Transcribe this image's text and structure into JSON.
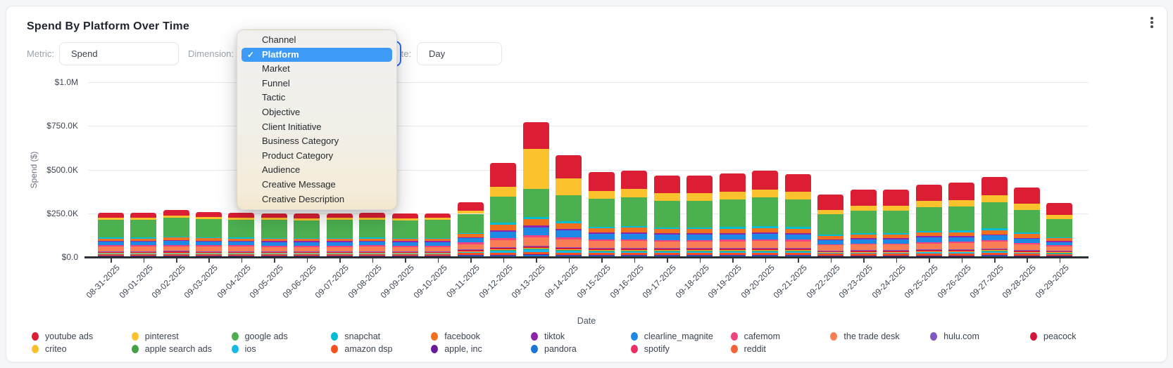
{
  "header": {
    "title": "Spend By Platform Over Time",
    "menu_icon": "kebab-menu-icon"
  },
  "filters": {
    "metric": {
      "label": "Metric:",
      "value": "Spend"
    },
    "dimension": {
      "label": "Dimension:",
      "value": "Platform"
    },
    "date": {
      "label": "Date:",
      "value": "Day"
    }
  },
  "dropdown": {
    "selected": "Platform",
    "check_icon": "checkmark-icon",
    "options": [
      "Channel",
      "Platform",
      "Market",
      "Funnel",
      "Tactic",
      "Objective",
      "Client Initiative",
      "Business Category",
      "Product Category",
      "Audience",
      "Creative Message",
      "Creative Description"
    ]
  },
  "legend": {
    "columns": [
      [
        "youtube ads",
        "criteo"
      ],
      [
        "pinterest",
        "apple search ads"
      ],
      [
        "google ads",
        "ios"
      ],
      [
        "snapchat",
        "amazon dsp"
      ],
      [
        "facebook",
        "apple, inc"
      ],
      [
        "tiktok",
        "pandora"
      ],
      [
        "clearline_magnite",
        "spotify"
      ],
      [
        "cafemom",
        "reddit"
      ],
      [
        "the trade desk"
      ],
      [
        "hulu.com"
      ],
      [
        "peacock"
      ]
    ]
  },
  "chart_data": {
    "type": "bar",
    "stacked": true,
    "title": "Spend By Platform Over Time",
    "xlabel": "Date",
    "ylabel": "Spend ($)",
    "unit": "thousand USD",
    "ylim": [
      0,
      1000
    ],
    "grid": true,
    "legend_position": "bottom",
    "y_ticks": [
      {
        "label": "$0.0",
        "value": 0
      },
      {
        "label": "$250.0K",
        "value": 250
      },
      {
        "label": "$500.0K",
        "value": 500
      },
      {
        "label": "$750.0K",
        "value": 750
      },
      {
        "label": "$1.0M",
        "value": 1000
      }
    ],
    "x": [
      "08-31-2025",
      "09-01-2025",
      "09-02-2025",
      "09-03-2025",
      "09-04-2025",
      "09-05-2025",
      "09-06-2025",
      "09-07-2025",
      "09-08-2025",
      "09-09-2025",
      "09-10-2025",
      "09-11-2025",
      "09-12-2025",
      "09-13-2025",
      "09-14-2025",
      "09-15-2025",
      "09-16-2025",
      "09-17-2025",
      "09-18-2025",
      "09-19-2025",
      "09-20-2025",
      "09-21-2025",
      "09-22-2025",
      "09-23-2025",
      "09-24-2025",
      "09-25-2025",
      "09-26-2025",
      "09-27-2025",
      "09-28-2025",
      "09-29-2025"
    ],
    "stack_order": "bottom-to-top",
    "series": [
      {
        "name": "reddit",
        "color": "#f4623a",
        "values": [
          2,
          2,
          2,
          2,
          2,
          2,
          2,
          2,
          2,
          2,
          2,
          3,
          3,
          3,
          3,
          3,
          3,
          3,
          3,
          3,
          3,
          3,
          2,
          2,
          2,
          2,
          2,
          3,
          2,
          2
        ]
      },
      {
        "name": "spotify",
        "color": "#ec2d63",
        "values": [
          2,
          2,
          2,
          2,
          2,
          2,
          2,
          2,
          2,
          2,
          2,
          3,
          3,
          3,
          3,
          3,
          3,
          3,
          3,
          3,
          3,
          3,
          2,
          2,
          2,
          2,
          2,
          3,
          2,
          2
        ]
      },
      {
        "name": "pandora",
        "color": "#1976d2",
        "values": [
          3,
          3,
          3,
          3,
          3,
          3,
          3,
          3,
          3,
          3,
          3,
          4,
          4,
          5,
          4,
          4,
          4,
          4,
          4,
          4,
          4,
          4,
          3,
          3,
          3,
          3,
          3,
          4,
          3,
          3
        ]
      },
      {
        "name": "apple, inc",
        "color": "#6a1b9a",
        "values": [
          3,
          3,
          3,
          3,
          3,
          3,
          3,
          3,
          3,
          3,
          3,
          4,
          4,
          4,
          4,
          4,
          4,
          4,
          4,
          4,
          4,
          4,
          3,
          3,
          3,
          3,
          3,
          4,
          3,
          3
        ]
      },
      {
        "name": "amazon dsp",
        "color": "#f4511e",
        "values": [
          8,
          8,
          9,
          8,
          8,
          8,
          8,
          8,
          8,
          8,
          8,
          10,
          12,
          15,
          12,
          12,
          12,
          11,
          11,
          11,
          12,
          11,
          9,
          9,
          9,
          10,
          10,
          11,
          9,
          8
        ]
      },
      {
        "name": "ios",
        "color": "#18b9e6",
        "values": [
          2,
          2,
          2,
          2,
          2,
          2,
          2,
          2,
          2,
          2,
          2,
          3,
          12,
          14,
          10,
          8,
          8,
          8,
          8,
          8,
          8,
          8,
          6,
          6,
          6,
          7,
          7,
          7,
          6,
          4
        ]
      },
      {
        "name": "apple search ads",
        "color": "#43a047",
        "values": [
          3,
          3,
          3,
          3,
          3,
          3,
          3,
          3,
          3,
          3,
          3,
          4,
          4,
          4,
          4,
          4,
          4,
          4,
          4,
          4,
          4,
          4,
          3,
          3,
          3,
          4,
          4,
          4,
          3,
          3
        ]
      },
      {
        "name": "criteo",
        "color": "#fcbe2d",
        "values": [
          2,
          2,
          2,
          2,
          2,
          2,
          2,
          2,
          2,
          2,
          2,
          3,
          3,
          3,
          3,
          3,
          3,
          3,
          3,
          3,
          3,
          3,
          2,
          2,
          2,
          3,
          3,
          3,
          2,
          2
        ]
      },
      {
        "name": "peacock",
        "color": "#d4163c",
        "values": [
          6,
          6,
          6,
          6,
          6,
          6,
          6,
          6,
          6,
          6,
          6,
          7,
          8,
          8,
          8,
          7,
          7,
          7,
          7,
          7,
          7,
          7,
          5,
          6,
          6,
          6,
          6,
          7,
          6,
          5
        ]
      },
      {
        "name": "hulu.com",
        "color": "#7e57c2",
        "values": [
          3,
          3,
          3,
          3,
          3,
          3,
          3,
          3,
          3,
          3,
          3,
          4,
          5,
          5,
          5,
          4,
          4,
          4,
          4,
          4,
          4,
          4,
          3,
          3,
          3,
          4,
          4,
          4,
          3,
          3
        ]
      },
      {
        "name": "the trade desk",
        "color": "#fa7e55",
        "values": [
          25,
          25,
          26,
          25,
          25,
          24,
          24,
          24,
          25,
          24,
          24,
          29,
          40,
          50,
          45,
          40,
          41,
          38,
          38,
          39,
          40,
          39,
          29,
          32,
          32,
          34,
          35,
          37,
          33,
          26
        ]
      },
      {
        "name": "cafemom",
        "color": "#f0437f",
        "values": [
          8,
          8,
          9,
          8,
          8,
          8,
          8,
          8,
          8,
          8,
          8,
          10,
          10,
          10,
          10,
          9,
          9,
          9,
          9,
          9,
          9,
          9,
          7,
          7,
          7,
          8,
          8,
          8,
          7,
          6
        ]
      },
      {
        "name": "clearline_magnite",
        "color": "#1e88e5",
        "values": [
          20,
          20,
          22,
          21,
          20,
          20,
          20,
          20,
          20,
          20,
          20,
          24,
          35,
          45,
          40,
          30,
          31,
          29,
          29,
          30,
          31,
          30,
          22,
          24,
          24,
          26,
          26,
          28,
          25,
          19
        ]
      },
      {
        "name": "tiktok",
        "color": "#8e24aa",
        "values": [
          5,
          5,
          5,
          5,
          5,
          5,
          5,
          5,
          5,
          5,
          5,
          6,
          10,
          12,
          10,
          8,
          8,
          8,
          8,
          8,
          8,
          8,
          6,
          6,
          6,
          7,
          7,
          7,
          6,
          5
        ]
      },
      {
        "name": "facebook",
        "color": "#f0701f",
        "values": [
          14,
          14,
          15,
          14,
          14,
          14,
          14,
          14,
          14,
          14,
          14,
          17,
          30,
          35,
          30,
          25,
          26,
          24,
          24,
          25,
          26,
          25,
          19,
          20,
          20,
          22,
          22,
          24,
          21,
          16
        ]
      },
      {
        "name": "snapchat",
        "color": "#00bcd4",
        "values": [
          5,
          5,
          5,
          5,
          5,
          5,
          5,
          5,
          5,
          5,
          5,
          6,
          12,
          14,
          12,
          10,
          10,
          9,
          9,
          10,
          10,
          10,
          7,
          8,
          8,
          8,
          9,
          9,
          8,
          6
        ]
      },
      {
        "name": "google ads",
        "color": "#4caf50",
        "values": [
          102,
          102,
          108,
          103,
          102,
          101,
          100,
          101,
          102,
          99,
          101,
          110,
          150,
          160,
          150,
          160,
          165,
          155,
          154,
          159,
          164,
          157,
          118,
          128,
          128,
          137,
          140,
          150,
          132,
          104
        ]
      },
      {
        "name": "pinterest",
        "color": "#fcc22d",
        "values": [
          12,
          12,
          13,
          12,
          12,
          12,
          12,
          12,
          12,
          12,
          12,
          20,
          55,
          230,
          95,
          45,
          46,
          42,
          42,
          44,
          46,
          43,
          25,
          30,
          30,
          34,
          36,
          40,
          34,
          22
        ]
      },
      {
        "name": "youtube ads",
        "color": "#dc1e35",
        "values": [
          29,
          29,
          32,
          29,
          29,
          28,
          28,
          28,
          29,
          28,
          28,
          45,
          140,
          150,
          135,
          105,
          108,
          100,
          100,
          104,
          107,
          103,
          85,
          90,
          90,
          95,
          98,
          105,
          92,
          72
        ]
      }
    ]
  }
}
